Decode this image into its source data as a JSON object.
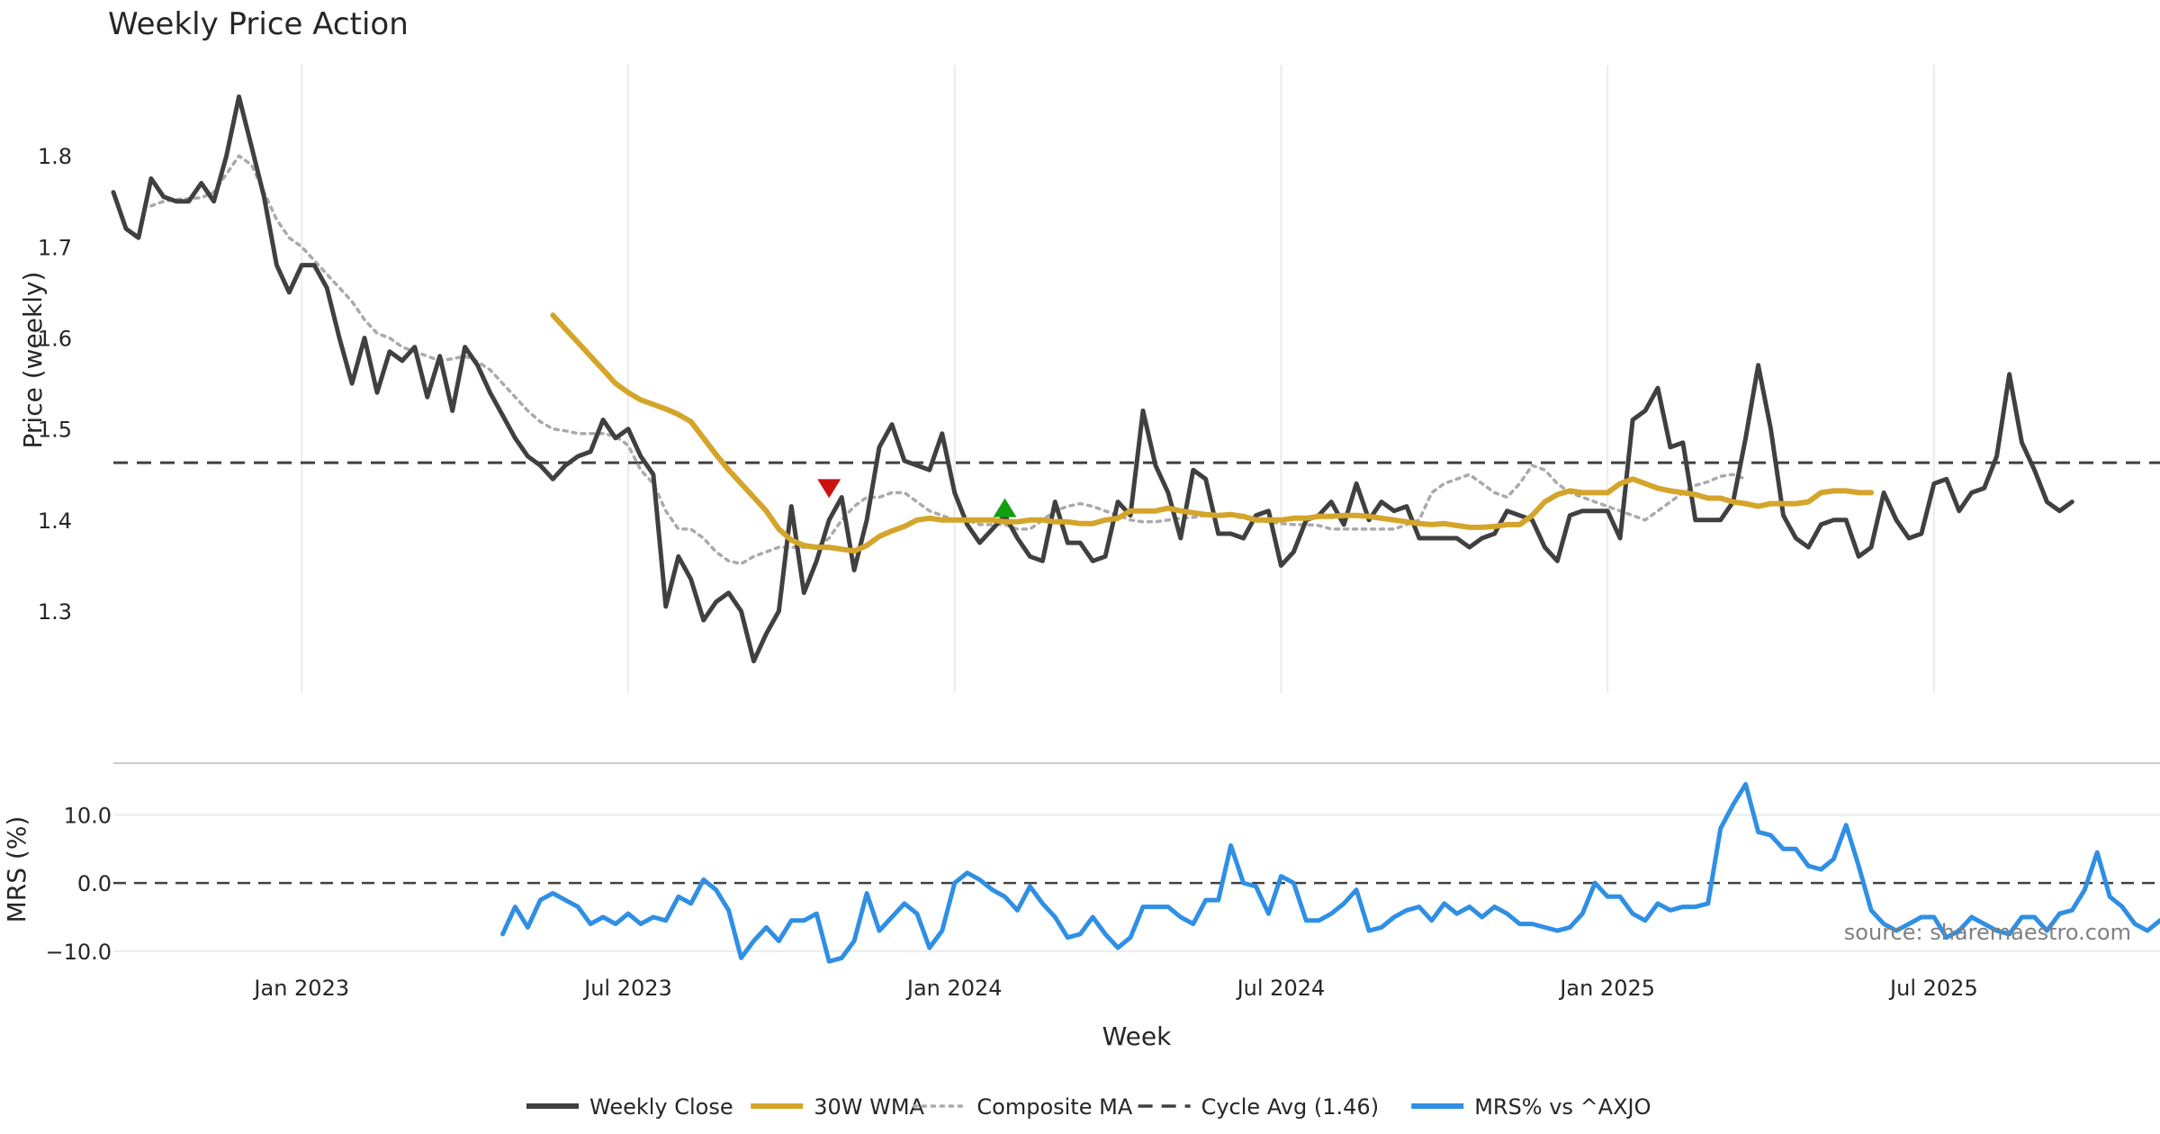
{
  "chart_data": [
    {
      "panel": "price",
      "type": "line",
      "title": "Weekly Price Action",
      "xlabel": "",
      "ylabel": "Price (weekly)",
      "yticks": [
        1.3,
        1.4,
        1.5,
        1.6,
        1.7,
        1.8
      ],
      "ytick_labels": [
        "1.3",
        "1.4",
        "1.5",
        "1.6",
        "1.7",
        "1.8"
      ],
      "ylim": [
        1.21,
        1.9
      ],
      "xlim": [
        "2022-09-19",
        "2025-11-03"
      ],
      "x_gridlines": [
        "2023-01-02",
        "2023-07-03",
        "2024-01-01",
        "2024-07-01",
        "2024-12-30",
        "2025-06-30"
      ],
      "cycle_avg": 1.463,
      "markers": [
        {
          "type": "sell",
          "date": "2023-10-23",
          "value": 1.435,
          "color": "#cc1111"
        },
        {
          "type": "buy",
          "date": "2024-01-29",
          "value": 1.413,
          "color": "#11a011"
        }
      ],
      "series": [
        {
          "name": "Weekly Close",
          "start": "2022-09-19",
          "color": "#404040",
          "values": [
            1.76,
            1.72,
            1.71,
            1.775,
            1.755,
            1.75,
            1.75,
            1.77,
            1.75,
            1.8,
            1.865,
            1.81,
            1.755,
            1.68,
            1.65,
            1.68,
            1.68,
            1.655,
            1.6,
            1.55,
            1.6,
            1.54,
            1.585,
            1.575,
            1.59,
            1.535,
            1.58,
            1.52,
            1.59,
            1.57,
            1.54,
            1.515,
            1.49,
            1.47,
            1.46,
            1.445,
            1.46,
            1.47,
            1.475,
            1.51,
            1.49,
            1.5,
            1.47,
            1.45,
            1.305,
            1.36,
            1.335,
            1.29,
            1.31,
            1.32,
            1.3,
            1.245,
            1.275,
            1.3,
            1.415,
            1.32,
            1.355,
            1.4,
            1.425,
            1.345,
            1.4,
            1.48,
            1.505,
            1.465,
            1.46,
            1.455,
            1.495,
            1.43,
            1.395,
            1.375,
            1.39,
            1.405,
            1.38,
            1.36,
            1.355,
            1.42,
            1.375,
            1.375,
            1.355,
            1.36,
            1.42,
            1.405,
            1.52,
            1.46,
            1.43,
            1.38,
            1.455,
            1.445,
            1.385,
            1.385,
            1.38,
            1.405,
            1.41,
            1.35,
            1.365,
            1.4,
            1.405,
            1.42,
            1.395,
            1.44,
            1.4,
            1.42,
            1.41,
            1.415,
            1.38,
            1.38,
            1.38,
            1.38,
            1.37,
            1.38,
            1.385,
            1.41,
            1.405,
            1.4,
            1.37,
            1.355,
            1.405,
            1.41,
            1.41,
            1.41,
            1.38,
            1.51,
            1.52,
            1.545,
            1.48,
            1.485,
            1.4,
            1.4,
            1.4,
            1.42,
            1.49,
            1.57,
            1.5,
            1.405,
            1.38,
            1.37,
            1.395,
            1.4,
            1.4,
            1.36,
            1.37,
            1.43,
            1.4,
            1.38,
            1.385,
            1.44,
            1.445,
            1.41,
            1.43,
            1.435,
            1.47,
            1.56,
            1.485,
            1.455,
            1.42,
            1.41,
            1.42
          ]
        },
        {
          "name": "30W WMA",
          "start": "2023-05-22",
          "color": "#d4a52a",
          "values": [
            1.625,
            1.61,
            1.595,
            1.58,
            1.565,
            1.55,
            1.54,
            1.532,
            1.527,
            1.522,
            1.516,
            1.508,
            1.49,
            1.472,
            1.455,
            1.44,
            1.425,
            1.41,
            1.39,
            1.378,
            1.372,
            1.37,
            1.37,
            1.368,
            1.366,
            1.372,
            1.382,
            1.388,
            1.393,
            1.4,
            1.402,
            1.4,
            1.4,
            1.4,
            1.4,
            1.4,
            1.398,
            1.398,
            1.4,
            1.4,
            1.398,
            1.398,
            1.396,
            1.396,
            1.4,
            1.402,
            1.41,
            1.41,
            1.41,
            1.413,
            1.41,
            1.408,
            1.406,
            1.405,
            1.406,
            1.404,
            1.4,
            1.4,
            1.4,
            1.402,
            1.402,
            1.404,
            1.404,
            1.405,
            1.405,
            1.404,
            1.402,
            1.4,
            1.398,
            1.396,
            1.395,
            1.396,
            1.394,
            1.392,
            1.392,
            1.393,
            1.395,
            1.395,
            1.405,
            1.42,
            1.428,
            1.432,
            1.43,
            1.43,
            1.43,
            1.44,
            1.445,
            1.44,
            1.435,
            1.432,
            1.43,
            1.428,
            1.424,
            1.424,
            1.42,
            1.418,
            1.415,
            1.418,
            1.418,
            1.418,
            1.42,
            1.43,
            1.432,
            1.432,
            1.43,
            1.43
          ]
        },
        {
          "name": "Composite MA",
          "start": "2022-10-10",
          "color": "#aaaaaa",
          "values": [
            1.745,
            1.75,
            1.752,
            1.753,
            1.754,
            1.76,
            1.78,
            1.8,
            1.79,
            1.76,
            1.73,
            1.71,
            1.7,
            1.685,
            1.67,
            1.655,
            1.64,
            1.62,
            1.605,
            1.6,
            1.59,
            1.585,
            1.58,
            1.575,
            1.577,
            1.58,
            1.574,
            1.565,
            1.55,
            1.535,
            1.52,
            1.508,
            1.5,
            1.498,
            1.495,
            1.495,
            1.495,
            1.492,
            1.482,
            1.455,
            1.44,
            1.41,
            1.39,
            1.39,
            1.38,
            1.365,
            1.355,
            1.352,
            1.36,
            1.365,
            1.37,
            1.37,
            1.37,
            1.37,
            1.38,
            1.4,
            1.415,
            1.425,
            1.425,
            1.43,
            1.43,
            1.42,
            1.41,
            1.405,
            1.4,
            1.4,
            1.395,
            1.395,
            1.395,
            1.39,
            1.39,
            1.4,
            1.41,
            1.415,
            1.418,
            1.415,
            1.41,
            1.405,
            1.4,
            1.398,
            1.398,
            1.4,
            1.402,
            1.403,
            1.405,
            1.405,
            1.405,
            1.402,
            1.4,
            1.398,
            1.396,
            1.395,
            1.395,
            1.394,
            1.39,
            1.39,
            1.39,
            1.39,
            1.39,
            1.39,
            1.395,
            1.4,
            1.43,
            1.44,
            1.445,
            1.45,
            1.44,
            1.43,
            1.425,
            1.44,
            1.46,
            1.455,
            1.44,
            1.43,
            1.425,
            1.42,
            1.415,
            1.41,
            1.405,
            1.4,
            1.41,
            1.42,
            1.43,
            1.438,
            1.442,
            1.448,
            1.45,
            1.445
          ]
        }
      ]
    },
    {
      "panel": "mrs",
      "type": "line",
      "title": "",
      "xlabel": "Week",
      "ylabel": "MRS (%)",
      "yticks": [
        -10,
        0,
        10
      ],
      "ytick_labels": [
        "−10.0",
        "0.0",
        "10.0"
      ],
      "ylim": [
        -12,
        16
      ],
      "xticks": [
        "2023-01-02",
        "2023-07-03",
        "2024-01-01",
        "2024-07-01",
        "2024-12-30",
        "2025-06-30"
      ],
      "xtick_labels": [
        "Jan 2023",
        "Jul 2023",
        "Jan 2024",
        "Jul 2024",
        "Jan 2025",
        "Jul 2025"
      ],
      "reference_line": 0,
      "series": [
        {
          "name": "MRS% vs ^AXJO",
          "start": "2023-04-24",
          "color": "#2f8fe4",
          "values": [
            -7.5,
            -3.5,
            -6.5,
            -2.5,
            -1.5,
            -2.5,
            -3.5,
            -6,
            -5,
            -6,
            -4.5,
            -6,
            -5,
            -5.5,
            -2,
            -3,
            0.5,
            -1,
            -4,
            -11,
            -8.5,
            -6.5,
            -8.5,
            -5.5,
            -5.5,
            -4.5,
            -11.5,
            -11,
            -8.5,
            -1.5,
            -7,
            -5,
            -3,
            -4.5,
            -9.5,
            -7,
            0,
            1.5,
            0.5,
            -1,
            -2,
            -4,
            -0.5,
            -3,
            -5,
            -8,
            -7.5,
            -5,
            -7.5,
            -9.5,
            -8,
            -3.5,
            -3.5,
            -3.5,
            -5,
            -6,
            -2.5,
            -2.5,
            5.5,
            0,
            -0.5,
            -4.5,
            1,
            0,
            -5.5,
            -5.5,
            -4.5,
            -3,
            -1,
            -7,
            -6.5,
            -5,
            -4,
            -3.5,
            -5.5,
            -3,
            -4.5,
            -3.5,
            -5,
            -3.5,
            -4.5,
            -6,
            -6,
            -6.5,
            -7,
            -6.5,
            -4.5,
            0,
            -2,
            -2,
            -4.5,
            -5.5,
            -3,
            -4,
            -3.5,
            -3.5,
            -3,
            8,
            11.5,
            14.5,
            7.5,
            7,
            5,
            5,
            2.5,
            2,
            3.5,
            8.5,
            2.5,
            -4,
            -6,
            -7,
            -6,
            -5,
            -5,
            -8,
            -7,
            -5,
            -6,
            -7,
            -7.5,
            -5,
            -5,
            -7,
            -4.5,
            -4,
            -1,
            4.5,
            -2,
            -3.5,
            -6,
            -7,
            -5.5
          ]
        }
      ]
    }
  ],
  "legend": [
    {
      "label": "Weekly Close",
      "color": "#404040",
      "style": "solid"
    },
    {
      "label": "30W WMA",
      "color": "#d4a52a",
      "style": "solid"
    },
    {
      "label": "Composite MA",
      "color": "#aaaaaa",
      "style": "dotted"
    },
    {
      "label": "Cycle Avg (1.46)",
      "color": "#404040",
      "style": "dashed"
    },
    {
      "label": "MRS% vs ^AXJO",
      "color": "#2f8fe4",
      "style": "solid"
    }
  ],
  "source": "source: sharemaestro.com"
}
